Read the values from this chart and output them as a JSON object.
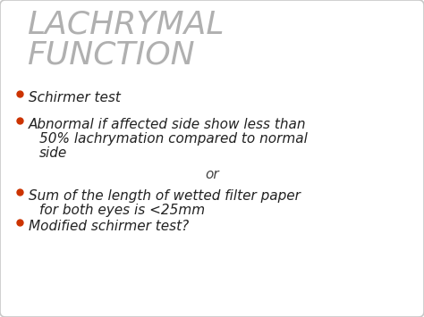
{
  "title_line1": "LACHRYMAL",
  "title_line2": "FUNCTION",
  "title_color": "#b0b0b0",
  "bullet_color": "#cc3300",
  "text_color": "#222222",
  "bg_color": "#ffffff",
  "border_color": "#c8c8c8",
  "bullet1": "Schirmer test",
  "bullet2_line1": "Abnormal if affected side show less than",
  "bullet2_line2": "50% lachrymation compared to normal",
  "bullet2_line3": "side",
  "or_text": "or",
  "bullet3_line1": "Sum of the length of wetted filter paper",
  "bullet3_line2": "for both eyes is <25mm",
  "bullet4": "Modified schirmer test?",
  "title_fontsize": 26,
  "bullet_fontsize": 11,
  "or_fontsize": 11,
  "or_color": "#444444"
}
